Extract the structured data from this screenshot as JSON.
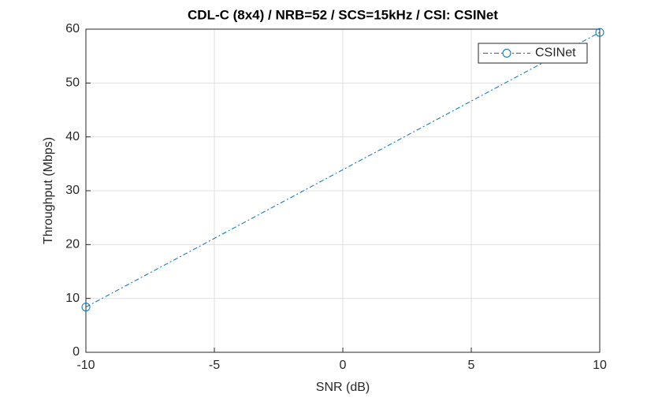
{
  "chart_data": {
    "type": "line",
    "title": "CDL-C (8x4) / NRB=52 / SCS=15kHz / CSI: CSINet",
    "x_label": "SNR (dB)",
    "y_label": "Throughput (Mbps)",
    "x": [
      -10,
      10
    ],
    "series": [
      {
        "name": "CSINet",
        "color": "#0072bd",
        "values": [
          8.4,
          59.4
        ]
      }
    ],
    "xlim": [
      -10,
      10
    ],
    "xticks": [
      -10,
      -5,
      0,
      5,
      10
    ],
    "ylim": [
      0,
      60
    ],
    "yticks": [
      0,
      10,
      20,
      30,
      40,
      50,
      60
    ],
    "grid": true,
    "legend": "northeast"
  }
}
